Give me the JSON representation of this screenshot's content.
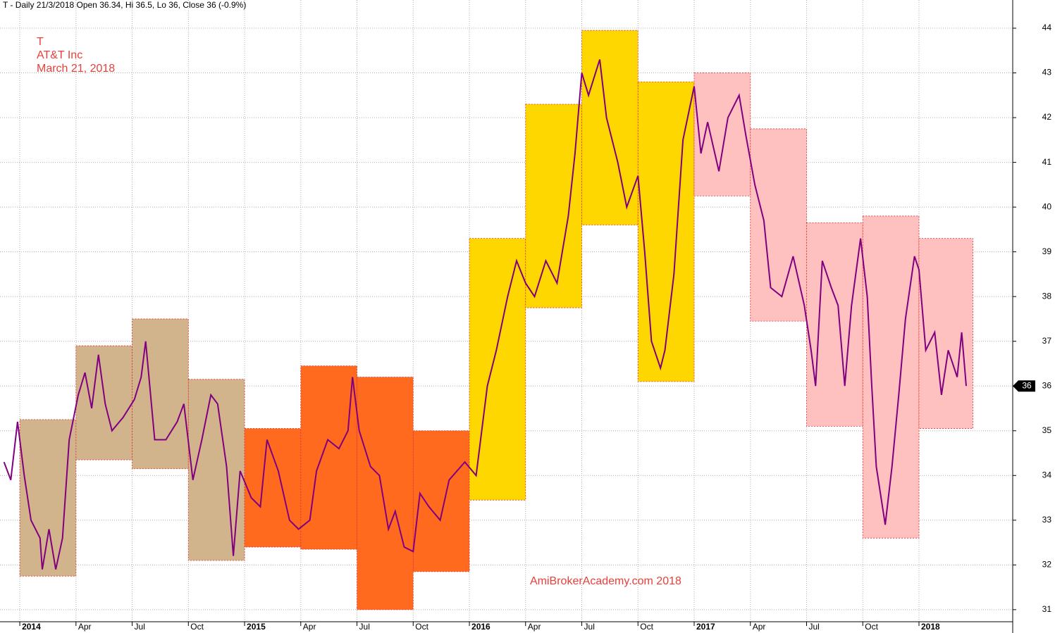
{
  "chart_data": {
    "type": "line",
    "header": "T - Daily 21/3/2018 Open 36.34, Hi 36.5, Lo 36, Close 36 (-0.9%)",
    "annotations": [
      "T",
      "AT&T Inc",
      "March 21, 2018"
    ],
    "watermark": "AmiBrokerAcademy.com  2018",
    "xlim": [
      2013.912,
      2018.417
    ],
    "ylim": [
      30.73,
      44.63
    ],
    "yticks": [
      31,
      32,
      33,
      34,
      35,
      36,
      37,
      38,
      39,
      40,
      41,
      42,
      43,
      44
    ],
    "xticks": [
      {
        "value": 2014,
        "label": "2014"
      },
      {
        "value": 2014.25,
        "label": "Apr"
      },
      {
        "value": 2014.5,
        "label": "Jul"
      },
      {
        "value": 2014.75,
        "label": "Oct"
      },
      {
        "value": 2015,
        "label": "2015"
      },
      {
        "value": 2015.25,
        "label": "Apr"
      },
      {
        "value": 2015.5,
        "label": "Jul"
      },
      {
        "value": 2015.75,
        "label": "Oct"
      },
      {
        "value": 2016,
        "label": "2016"
      },
      {
        "value": 2016.25,
        "label": "Apr"
      },
      {
        "value": 2016.5,
        "label": "Jul"
      },
      {
        "value": 2016.75,
        "label": "Oct"
      },
      {
        "value": 2017,
        "label": "2017"
      },
      {
        "value": 2017.25,
        "label": "Apr"
      },
      {
        "value": 2017.5,
        "label": "Jul"
      },
      {
        "value": 2017.75,
        "label": "Oct"
      },
      {
        "value": 2018,
        "label": "2018"
      }
    ],
    "grid": true,
    "color": "#800080",
    "last_price": 36,
    "boxes": [
      {
        "x": [
          2014,
          2014.25
        ],
        "low": 31.75,
        "high": 35.25,
        "color": "#d2b48c"
      },
      {
        "x": [
          2014.25,
          2014.5
        ],
        "low": 34.35,
        "high": 36.9,
        "color": "#d2b48c"
      },
      {
        "x": [
          2014.5,
          2014.75
        ],
        "low": 34.15,
        "high": 37.5,
        "color": "#d2b48c"
      },
      {
        "x": [
          2014.75,
          2015
        ],
        "low": 32.1,
        "high": 36.15,
        "color": "#d2b48c"
      },
      {
        "x": [
          2015,
          2015.25
        ],
        "low": 32.4,
        "high": 35.05,
        "color": "#ff6a1f"
      },
      {
        "x": [
          2015.25,
          2015.5
        ],
        "low": 32.35,
        "high": 36.45,
        "color": "#ff6a1f"
      },
      {
        "x": [
          2015.5,
          2015.75
        ],
        "low": 31.0,
        "high": 36.2,
        "color": "#ff6a1f"
      },
      {
        "x": [
          2015.75,
          2016
        ],
        "low": 31.85,
        "high": 35.0,
        "color": "#ff6a1f"
      },
      {
        "x": [
          2016,
          2016.25
        ],
        "low": 33.45,
        "high": 39.3,
        "color": "#ffd700"
      },
      {
        "x": [
          2016.25,
          2016.5
        ],
        "low": 37.75,
        "high": 42.3,
        "color": "#ffd700"
      },
      {
        "x": [
          2016.5,
          2016.75
        ],
        "low": 39.6,
        "high": 43.95,
        "color": "#ffd700"
      },
      {
        "x": [
          2016.75,
          2017
        ],
        "low": 36.1,
        "high": 42.8,
        "color": "#ffd700"
      },
      {
        "x": [
          2017,
          2017.25
        ],
        "low": 40.25,
        "high": 43.0,
        "color": "#ffc0c0"
      },
      {
        "x": [
          2017.25,
          2017.5
        ],
        "low": 37.45,
        "high": 41.75,
        "color": "#ffc0c0"
      },
      {
        "x": [
          2017.5,
          2017.75
        ],
        "low": 35.1,
        "high": 39.65,
        "color": "#ffc0c0"
      },
      {
        "x": [
          2017.75,
          2018
        ],
        "low": 32.6,
        "high": 39.8,
        "color": "#ffc0c0"
      },
      {
        "x": [
          2018,
          2018.24
        ],
        "low": 35.05,
        "high": 39.3,
        "color": "#ffc0c0"
      }
    ],
    "x": [
      2013.93,
      2013.96,
      2013.99,
      2014.02,
      2014.05,
      2014.09,
      2014.1,
      2014.13,
      2014.16,
      2014.19,
      2014.22,
      2014.26,
      2014.29,
      2014.32,
      2014.35,
      2014.38,
      2014.41,
      2014.46,
      2014.51,
      2014.54,
      2014.56,
      2014.6,
      2014.65,
      2014.7,
      2014.73,
      2014.77,
      2014.81,
      2014.85,
      2014.88,
      2014.92,
      2014.95,
      2014.98,
      2015.03,
      2015.07,
      2015.1,
      2015.15,
      2015.2,
      2015.24,
      2015.29,
      2015.32,
      2015.37,
      2015.42,
      2015.46,
      2015.48,
      2015.51,
      2015.56,
      2015.6,
      2015.64,
      2015.67,
      2015.71,
      2015.75,
      2015.78,
      2015.82,
      2015.87,
      2015.91,
      2015.98,
      2016.03,
      2016.08,
      2016.12,
      2016.17,
      2016.21,
      2016.25,
      2016.29,
      2016.34,
      2016.39,
      2016.44,
      2016.47,
      2016.5,
      2016.53,
      2016.58,
      2016.61,
      2016.66,
      2016.7,
      2016.75,
      2016.78,
      2016.81,
      2016.85,
      2016.87,
      2016.91,
      2016.95,
      2017.0,
      2017.03,
      2017.06,
      2017.11,
      2017.15,
      2017.2,
      2017.23,
      2017.27,
      2017.31,
      2017.34,
      2017.39,
      2017.44,
      2017.49,
      2017.52,
      2017.54,
      2017.57,
      2017.61,
      2017.64,
      2017.67,
      2017.7,
      2017.74,
      2017.77,
      2017.79,
      2017.81,
      2017.85,
      2017.88,
      2017.91,
      2017.94,
      2017.98,
      2018.0,
      2018.03,
      2018.07,
      2018.1,
      2018.13,
      2018.17,
      2018.19,
      2018.21
    ],
    "values": [
      34.3,
      33.9,
      35.2,
      34.0,
      33.0,
      32.6,
      31.9,
      32.8,
      31.9,
      32.6,
      34.8,
      35.8,
      36.3,
      35.5,
      36.7,
      35.6,
      35.0,
      35.3,
      35.7,
      36.2,
      37.0,
      34.8,
      34.8,
      35.2,
      35.6,
      33.9,
      34.8,
      35.8,
      35.6,
      34.2,
      32.2,
      34.1,
      33.5,
      33.3,
      34.8,
      34.1,
      33.0,
      32.8,
      33.0,
      34.1,
      34.8,
      34.6,
      35.0,
      36.2,
      35.0,
      34.2,
      34.0,
      32.8,
      33.2,
      32.4,
      32.3,
      33.6,
      33.3,
      33.0,
      33.9,
      34.3,
      34.0,
      36.0,
      36.8,
      38.0,
      38.8,
      38.3,
      38.0,
      38.8,
      38.3,
      39.8,
      41.2,
      43.0,
      42.5,
      43.3,
      42.0,
      41.0,
      40.0,
      40.7,
      39.0,
      37.0,
      36.4,
      36.8,
      38.5,
      41.5,
      42.7,
      41.2,
      41.9,
      40.8,
      42.0,
      42.5,
      41.6,
      40.5,
      39.7,
      38.2,
      38.0,
      38.9,
      37.8,
      36.8,
      36.0,
      38.8,
      38.2,
      37.8,
      36.0,
      37.8,
      39.3,
      38.0,
      36.0,
      34.2,
      32.9,
      34.2,
      35.8,
      37.5,
      38.9,
      38.6,
      36.8,
      37.2,
      35.8,
      36.8,
      36.2,
      37.2,
      36.0
    ]
  }
}
